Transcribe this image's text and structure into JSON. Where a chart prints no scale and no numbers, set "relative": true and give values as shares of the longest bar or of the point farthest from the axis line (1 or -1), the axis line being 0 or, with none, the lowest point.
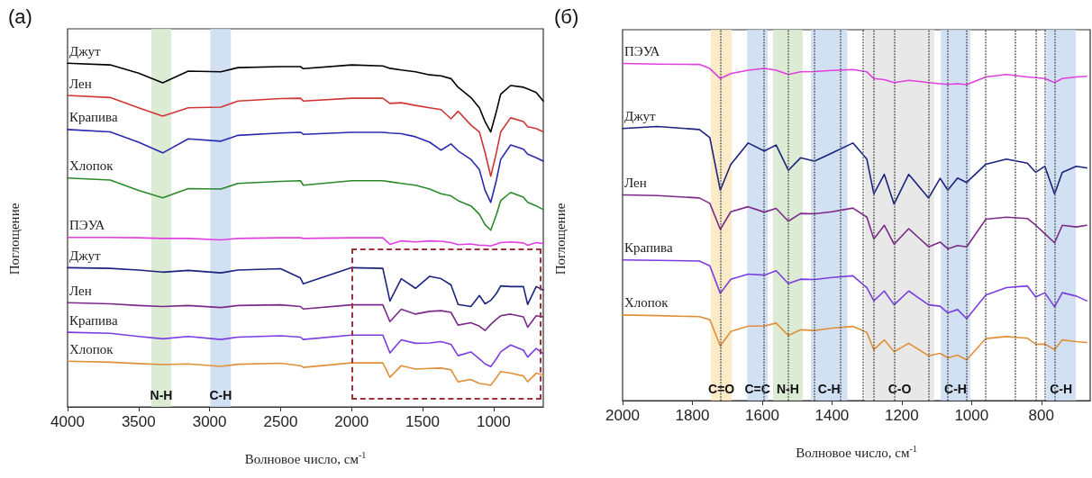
{
  "chart_data": [
    {
      "type": "line",
      "title": "(a)",
      "xlabel": "Волновое число, см$^{-1}$",
      "ylabel": "Поглощение",
      "relative": true,
      "legend": false,
      "grid": false,
      "marker": "none",
      "line_style": "solid",
      "xlim": [
        4000,
        650
      ],
      "xticks": [
        4000,
        3500,
        3000,
        2500,
        2000,
        1500,
        1000
      ],
      "x": [
        4000,
        3700,
        3500,
        3330,
        3150,
        2920,
        2800,
        2500,
        2360,
        2340,
        2000,
        1780,
        1730,
        1650,
        1550,
        1450,
        1370,
        1300,
        1250,
        1160,
        1100,
        1060,
        1020,
        980,
        950,
        880,
        790,
        760,
        700,
        650
      ],
      "series": [
        {
          "name": "Джут",
          "color": "#000000",
          "values": [
            1.0,
            0.995,
            0.971,
            0.943,
            0.977,
            0.975,
            0.987,
            0.99,
            0.99,
            0.984,
            0.995,
            0.992,
            0.985,
            0.98,
            0.975,
            0.966,
            0.963,
            0.955,
            0.93,
            0.9,
            0.87,
            0.83,
            0.8,
            0.86,
            0.91,
            0.935,
            0.93,
            0.925,
            0.915,
            0.89
          ]
        },
        {
          "name": "Лен",
          "color": "#d03535",
          "values": [
            0.906,
            0.9,
            0.87,
            0.846,
            0.87,
            0.872,
            0.89,
            0.897,
            0.898,
            0.89,
            0.898,
            0.898,
            0.883,
            0.885,
            0.877,
            0.87,
            0.865,
            0.838,
            0.86,
            0.82,
            0.8,
            0.74,
            0.671,
            0.74,
            0.8,
            0.841,
            0.83,
            0.815,
            0.81,
            0.8
          ]
        },
        {
          "name": "Крапива",
          "color": "#2a2ab0",
          "values": [
            0.807,
            0.8,
            0.77,
            0.739,
            0.78,
            0.773,
            0.79,
            0.797,
            0.799,
            0.793,
            0.799,
            0.799,
            0.797,
            0.795,
            0.786,
            0.77,
            0.747,
            0.765,
            0.745,
            0.72,
            0.69,
            0.63,
            0.595,
            0.66,
            0.72,
            0.762,
            0.75,
            0.735,
            0.725,
            0.715
          ]
        },
        {
          "name": "Хлопок",
          "color": "#2a8a2a",
          "values": [
            0.666,
            0.66,
            0.63,
            0.608,
            0.635,
            0.634,
            0.65,
            0.656,
            0.658,
            0.645,
            0.658,
            0.658,
            0.655,
            0.65,
            0.645,
            0.634,
            0.62,
            0.614,
            0.6,
            0.585,
            0.56,
            0.53,
            0.514,
            0.56,
            0.6,
            0.624,
            0.61,
            0.595,
            0.585,
            0.574
          ]
        },
        {
          "name": "ПЭУА",
          "color": "#e040e0",
          "values": [
            0.493,
            0.493,
            0.492,
            0.49,
            0.49,
            0.486,
            0.49,
            0.492,
            0.492,
            0.49,
            0.492,
            0.492,
            0.473,
            0.483,
            0.48,
            0.483,
            0.482,
            0.478,
            0.472,
            0.474,
            0.47,
            0.47,
            0.468,
            0.474,
            0.478,
            0.48,
            0.477,
            0.47,
            0.478,
            0.475
          ]
        },
        {
          "name": "Джут",
          "color": "#1a237e",
          "values": [
            0.405,
            0.403,
            0.398,
            0.392,
            0.397,
            0.39,
            0.398,
            0.402,
            0.375,
            0.358,
            0.405,
            0.403,
            0.308,
            0.373,
            0.345,
            0.38,
            0.373,
            0.355,
            0.298,
            0.292,
            0.324,
            0.3,
            0.31,
            0.33,
            0.352,
            0.35,
            0.35,
            0.298,
            0.35,
            0.34
          ]
        },
        {
          "name": "Лен",
          "color": "#7b2a8a",
          "values": [
            0.303,
            0.3,
            0.295,
            0.292,
            0.295,
            0.289,
            0.295,
            0.297,
            0.292,
            0.285,
            0.297,
            0.297,
            0.248,
            0.284,
            0.27,
            0.278,
            0.28,
            0.275,
            0.238,
            0.245,
            0.235,
            0.222,
            0.24,
            0.255,
            0.265,
            0.27,
            0.262,
            0.232,
            0.265,
            0.262
          ]
        },
        {
          "name": "Крапива",
          "color": "#7a3ee0",
          "values": [
            0.217,
            0.214,
            0.205,
            0.198,
            0.205,
            0.196,
            0.203,
            0.207,
            0.203,
            0.196,
            0.209,
            0.209,
            0.157,
            0.195,
            0.185,
            0.186,
            0.19,
            0.182,
            0.149,
            0.16,
            0.14,
            0.125,
            0.117,
            0.14,
            0.16,
            0.18,
            0.165,
            0.145,
            0.17,
            0.155
          ]
        },
        {
          "name": "Хлопок",
          "color": "#e0903a",
          "values": [
            0.133,
            0.13,
            0.126,
            0.123,
            0.125,
            0.118,
            0.124,
            0.127,
            0.12,
            0.115,
            0.128,
            0.128,
            0.086,
            0.12,
            0.11,
            0.112,
            0.113,
            0.108,
            0.073,
            0.08,
            0.068,
            0.066,
            0.063,
            0.085,
            0.103,
            0.098,
            0.09,
            0.073,
            0.098,
            0.093
          ]
        }
      ],
      "bands": [
        {
          "axis": "x",
          "from": 3410,
          "to": 3270,
          "label": "N-H",
          "color": "#d5e8cc"
        },
        {
          "axis": "x",
          "from": 2995,
          "to": 2850,
          "label": "C-H",
          "color": "#c9daf0"
        }
      ]
    },
    {
      "type": "line",
      "title": "(б)",
      "xlabel": "Волновое число, см$^{-1}$",
      "ylabel": "Поглощение",
      "relative": true,
      "legend": false,
      "grid": false,
      "marker": "none",
      "line_style": "solid",
      "xlim": [
        2000,
        660
      ],
      "xticks": [
        2000,
        1800,
        1600,
        1400,
        1200,
        1000,
        800
      ],
      "x": [
        2000,
        1900,
        1780,
        1750,
        1720,
        1690,
        1640,
        1594,
        1560,
        1525,
        1490,
        1450,
        1400,
        1340,
        1300,
        1280,
        1250,
        1222,
        1180,
        1123,
        1090,
        1068,
        1040,
        1014,
        959,
        900,
        840,
        816,
        790,
        762,
        740,
        700,
        670
      ],
      "series": [
        {
          "name": "ПЭУА",
          "color": "#e040e0",
          "values": [
            1.0,
            0.998,
            0.997,
            0.985,
            0.955,
            0.97,
            0.98,
            0.985,
            0.98,
            0.967,
            0.975,
            0.976,
            0.979,
            0.982,
            0.975,
            0.955,
            0.952,
            0.943,
            0.95,
            0.943,
            0.94,
            0.938,
            0.94,
            0.937,
            0.96,
            0.967,
            0.96,
            0.958,
            0.955,
            0.943,
            0.955,
            0.96,
            0.962
          ]
        },
        {
          "name": "Джут",
          "color": "#1a237e",
          "values": [
            0.807,
            0.813,
            0.804,
            0.78,
            0.624,
            0.7,
            0.764,
            0.74,
            0.758,
            0.683,
            0.72,
            0.71,
            0.734,
            0.764,
            0.716,
            0.613,
            0.671,
            0.583,
            0.671,
            0.601,
            0.659,
            0.624,
            0.66,
            0.647,
            0.701,
            0.716,
            0.704,
            0.677,
            0.695,
            0.613,
            0.677,
            0.695,
            0.69
          ]
        },
        {
          "name": "Лен",
          "color": "#7b2a8a",
          "values": [
            0.61,
            0.608,
            0.601,
            0.585,
            0.508,
            0.56,
            0.575,
            0.559,
            0.57,
            0.532,
            0.555,
            0.554,
            0.56,
            0.571,
            0.544,
            0.479,
            0.52,
            0.464,
            0.51,
            0.456,
            0.47,
            0.45,
            0.46,
            0.456,
            0.538,
            0.544,
            0.54,
            0.52,
            0.495,
            0.468,
            0.52,
            0.515,
            0.52
          ]
        },
        {
          "name": "Крапива",
          "color": "#7a3ee0",
          "values": [
            0.417,
            0.416,
            0.414,
            0.4,
            0.318,
            0.36,
            0.375,
            0.372,
            0.385,
            0.347,
            0.36,
            0.359,
            0.365,
            0.37,
            0.335,
            0.296,
            0.325,
            0.284,
            0.325,
            0.284,
            0.28,
            0.26,
            0.27,
            0.243,
            0.313,
            0.335,
            0.34,
            0.307,
            0.32,
            0.278,
            0.32,
            0.31,
            0.296
          ]
        },
        {
          "name": "Хлопок",
          "color": "#e0903a",
          "values": [
            0.254,
            0.252,
            0.249,
            0.24,
            0.162,
            0.205,
            0.221,
            0.221,
            0.23,
            0.193,
            0.21,
            0.208,
            0.215,
            0.22,
            0.202,
            0.151,
            0.18,
            0.145,
            0.17,
            0.133,
            0.14,
            0.127,
            0.135,
            0.121,
            0.184,
            0.19,
            0.185,
            0.167,
            0.168,
            0.151,
            0.18,
            0.175,
            0.172
          ]
        }
      ],
      "bands": [
        {
          "axis": "x",
          "from": 1747,
          "to": 1687,
          "label": "C=O",
          "color": "#fce8c0"
        },
        {
          "axis": "x",
          "from": 1643,
          "to": 1584,
          "label": "C=C",
          "color": "#c9daf0"
        },
        {
          "axis": "x",
          "from": 1569,
          "to": 1484,
          "label": "N-H",
          "color": "#d5e8cc"
        },
        {
          "axis": "x",
          "from": 1460,
          "to": 1356,
          "label": "C-H",
          "color": "#c9daf0"
        },
        {
          "axis": "x",
          "from": 1305,
          "to": 1107,
          "label": "C-O",
          "color": "#e4e4e4"
        },
        {
          "axis": "x",
          "from": 1088,
          "to": 1004,
          "label": "C-H",
          "color": "#c9daf0"
        },
        {
          "axis": "x",
          "from": 786,
          "to": 701,
          "label": "C-H",
          "color": "#c9daf0"
        }
      ],
      "ref_lines": [
        {
          "axis": "x",
          "value": 1720,
          "color": "#555555",
          "line_style": "dotted"
        },
        {
          "axis": "x",
          "value": 1594,
          "color": "#555555",
          "line_style": "dotted"
        },
        {
          "axis": "x",
          "value": 1525,
          "color": "#555555",
          "line_style": "dotted"
        },
        {
          "axis": "x",
          "value": 1450,
          "color": "#555555",
          "line_style": "dotted"
        },
        {
          "axis": "x",
          "value": 1375,
          "color": "#555555",
          "line_style": "dotted"
        },
        {
          "axis": "x",
          "value": 1311,
          "color": "#555555",
          "line_style": "dotted"
        },
        {
          "axis": "x",
          "value": 1280,
          "color": "#555555",
          "line_style": "dotted"
        },
        {
          "axis": "x",
          "value": 1222,
          "color": "#555555",
          "line_style": "dotted"
        },
        {
          "axis": "x",
          "value": 1123,
          "color": "#555555",
          "line_style": "dotted"
        },
        {
          "axis": "x",
          "value": 1068,
          "color": "#555555",
          "line_style": "dotted"
        },
        {
          "axis": "x",
          "value": 1014,
          "color": "#555555",
          "line_style": "dotted"
        },
        {
          "axis": "x",
          "value": 959,
          "color": "#555555",
          "line_style": "dotted"
        },
        {
          "axis": "x",
          "value": 875,
          "color": "#555555",
          "line_style": "dotted"
        },
        {
          "axis": "x",
          "value": 816,
          "color": "#555555",
          "line_style": "dotted"
        },
        {
          "axis": "x",
          "value": 790,
          "color": "#555555",
          "line_style": "dotted"
        },
        {
          "axis": "x",
          "value": 762,
          "color": "#555555",
          "line_style": "dotted"
        }
      ]
    }
  ]
}
